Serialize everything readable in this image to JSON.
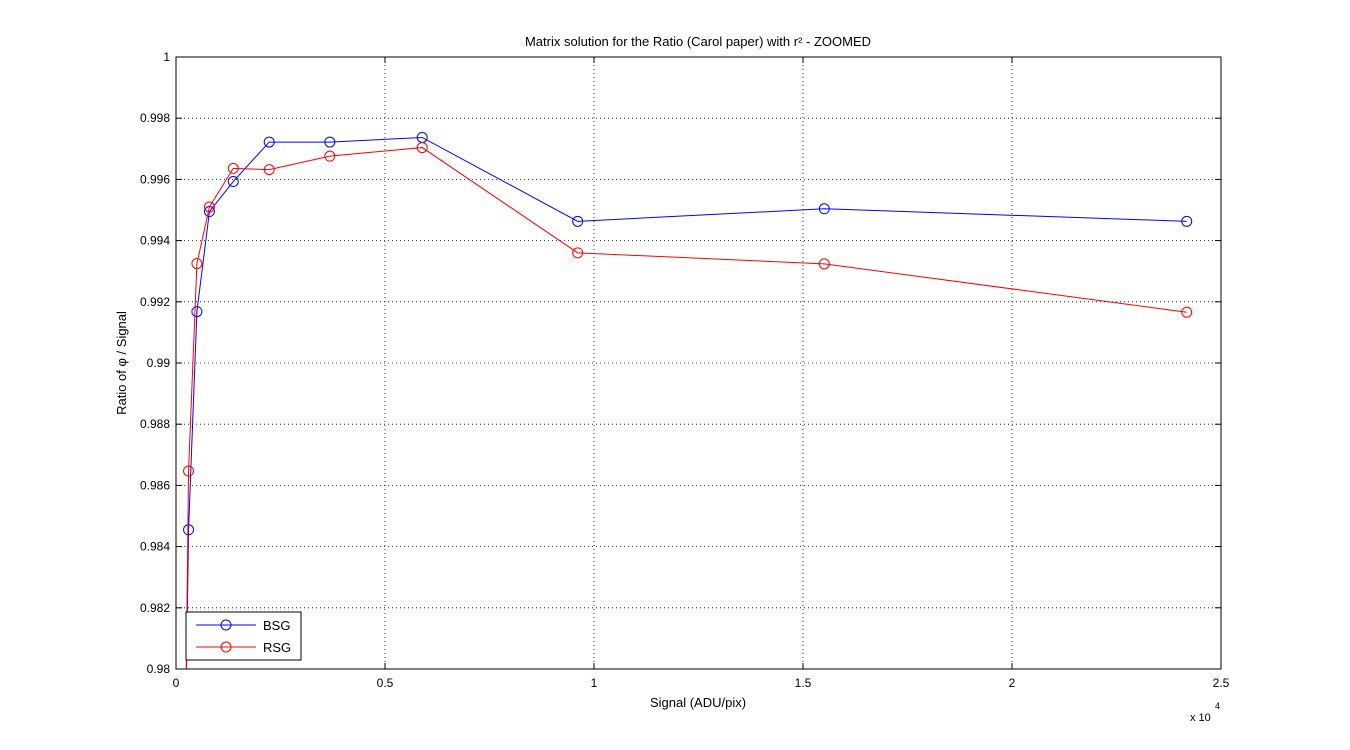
{
  "chart_data": {
    "type": "line",
    "title": "Matrix solution for the Ratio (Carol paper) with r² - ZOOMED",
    "xlabel": "Signal (ADU/pix)",
    "ylabel": "Ratio of φ / Signal",
    "x_exponent_label": "x 10",
    "x_exponent_power": "4",
    "xlim": [
      0,
      2.5
    ],
    "ylim": [
      0.98,
      1.0
    ],
    "x_ticks": [
      0,
      0.5,
      1,
      1.5,
      2,
      2.5
    ],
    "x_tick_labels": [
      "0",
      "0.5",
      "1",
      "1.5",
      "2",
      "2.5"
    ],
    "y_ticks": [
      0.98,
      0.982,
      0.984,
      0.986,
      0.988,
      0.99,
      0.992,
      0.994,
      0.996,
      0.998,
      1
    ],
    "y_tick_labels": [
      "0.98",
      "0.982",
      "0.984",
      "0.986",
      "0.988",
      "0.99",
      "0.992",
      "0.994",
      "0.996",
      "0.998",
      "1"
    ],
    "grid": true,
    "legend_position": "bottom-left",
    "series": [
      {
        "name": "BSG",
        "color": "#0000ff",
        "marker": "circle",
        "x": [
          0.022,
          0.03,
          0.05,
          0.08,
          0.137,
          0.223,
          0.368,
          0.589,
          0.961,
          1.551,
          2.418
        ],
        "y": [
          0.977,
          0.98455,
          0.99168,
          0.99495,
          0.99593,
          0.99722,
          0.99722,
          0.99737,
          0.99463,
          0.99504,
          0.99463
        ]
      },
      {
        "name": "RSG",
        "color": "#ff0000",
        "marker": "circle",
        "x": [
          0.022,
          0.03,
          0.05,
          0.08,
          0.137,
          0.223,
          0.368,
          0.589,
          0.961,
          1.551,
          2.418
        ],
        "y": [
          0.977,
          0.98647,
          0.99325,
          0.9951,
          0.99636,
          0.99632,
          0.99676,
          0.99704,
          0.9936,
          0.99324,
          0.99166
        ]
      }
    ]
  }
}
